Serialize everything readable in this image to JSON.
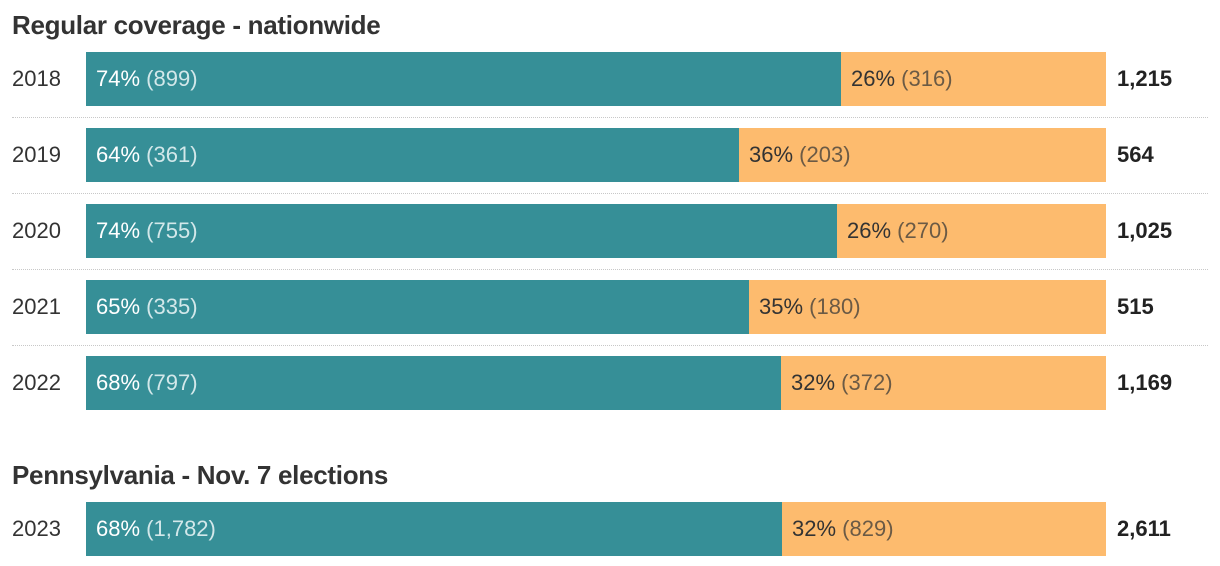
{
  "colors": {
    "segment_a": "#368f97",
    "segment_b": "#fdbb6e"
  },
  "chart_data": [
    {
      "type": "bar",
      "orientation": "horizontal",
      "stacked": true,
      "normalized": true,
      "title": "Regular coverage - nationwide",
      "categories": [
        "2018",
        "2019",
        "2020",
        "2021",
        "2022"
      ],
      "series": [
        {
          "values": [
            899,
            361,
            755,
            335,
            797
          ],
          "labels": [
            "74%",
            "64%",
            "74%",
            "65%",
            "68%"
          ],
          "count_labels": [
            "(899)",
            "(361)",
            "(755)",
            "(335)",
            "(797)"
          ]
        },
        {
          "values": [
            316,
            203,
            270,
            180,
            372
          ],
          "labels": [
            "26%",
            "36%",
            "26%",
            "35%",
            "32%"
          ],
          "count_labels": [
            "(316)",
            "(203)",
            "(270)",
            "(180)",
            "(372)"
          ]
        }
      ],
      "totals": [
        "1,215",
        "564",
        "1,025",
        "515",
        "1,169"
      ]
    },
    {
      "type": "bar",
      "orientation": "horizontal",
      "stacked": true,
      "normalized": true,
      "title": "Pennsylvania - Nov. 7 elections",
      "categories": [
        "2023"
      ],
      "series": [
        {
          "values": [
            1782
          ],
          "labels": [
            "68%"
          ],
          "count_labels": [
            "(1,782)"
          ]
        },
        {
          "values": [
            829
          ],
          "labels": [
            "32%"
          ],
          "count_labels": [
            "(829)"
          ]
        }
      ],
      "totals": [
        "2,611"
      ]
    }
  ]
}
